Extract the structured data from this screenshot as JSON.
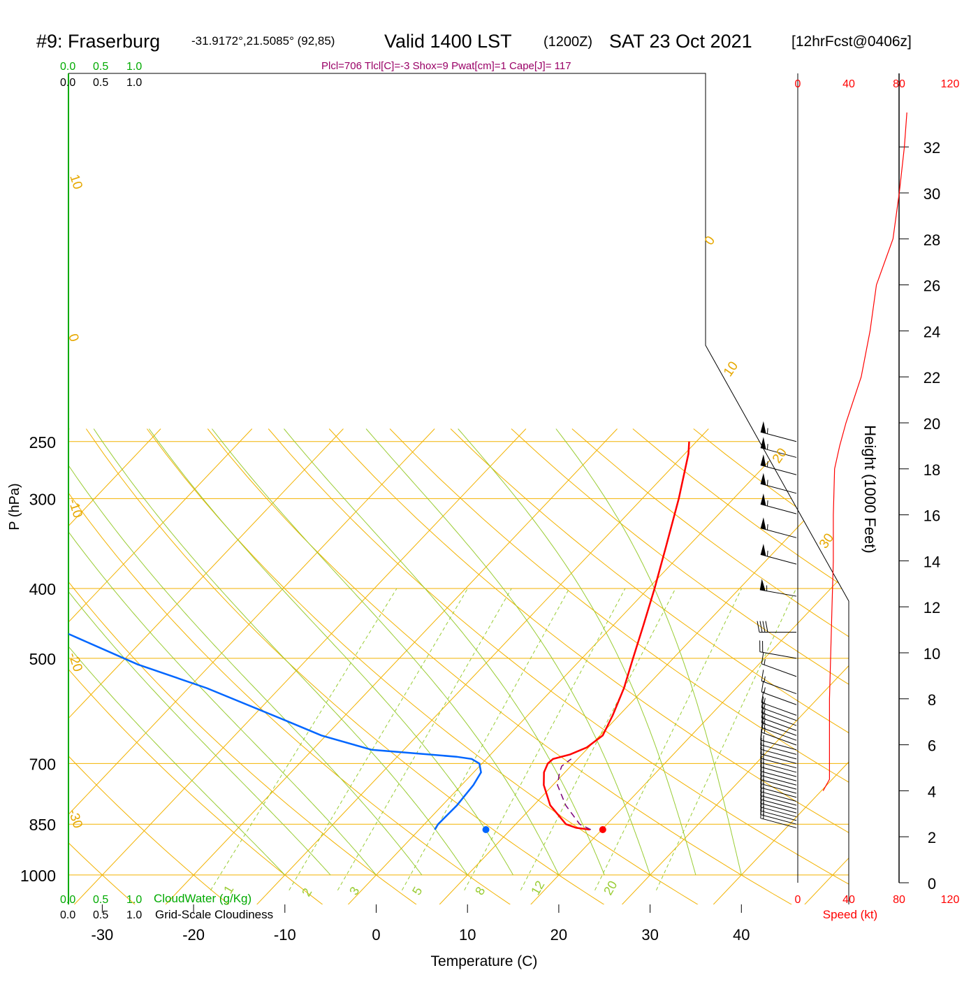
{
  "header": {
    "station": "#9: Fraserburg",
    "coords": "-31.9172°,21.5085° (92,85)",
    "valid": "Valid 1400 LST",
    "utc": "(1200Z)",
    "date": "SAT 23 Oct 2021",
    "forecast": "[12hrFcst@0406z]",
    "indices": "Plcl=706 Tlcl[C]=-3 Shox=9 Pwat[cm]=1 Cape[J]= 117"
  },
  "colors": {
    "temperature": "#ff0000",
    "dewpoint": "#0066ff",
    "parcel": "#7a0077",
    "isobar": "#f2b200",
    "dry_adiabat": "#f2b200",
    "moist_adiabat": "#99cc33",
    "mixing_ratio": "#99cc33",
    "cloudwater": "#00aa00",
    "speed": "#ff0000",
    "indices": "#990066"
  },
  "chart_data": {
    "type": "line",
    "xlabel": "Temperature (C)",
    "ylabel": "P (hPa)",
    "right_label": "Height (1000 Feet)",
    "x_ticks": [
      -30,
      -20,
      -10,
      0,
      10,
      20,
      30,
      40
    ],
    "p_ticks": [
      250,
      300,
      400,
      500,
      700,
      850,
      1000
    ],
    "height_ticks": [
      0,
      2,
      4,
      6,
      8,
      10,
      12,
      14,
      16,
      18,
      20,
      22,
      24,
      26,
      28,
      30,
      32
    ],
    "isotherm_labels": [
      "10",
      "0",
      "-10",
      "-20",
      "-30",
      "0",
      "10",
      "20",
      "30"
    ],
    "dry_adiabat_labels": [],
    "mixing_ratio_labels": [
      "1",
      "2",
      "3",
      "5",
      "8",
      "12",
      "20"
    ],
    "cloud_scale": {
      "cloudwater_ticks": [
        "0.0",
        "0.5",
        "1.0"
      ],
      "cloudiness_ticks": [
        "0.0",
        "0.5",
        "1.0"
      ],
      "cloudwater_label": "CloudWater (g/Kg)",
      "cloudiness_label": "Grid-Scale Cloudiness"
    },
    "speed_scale": {
      "ticks": [
        "0",
        "40",
        "80",
        "120"
      ],
      "label": "Speed (kt)"
    },
    "series": [
      {
        "name": "Temperature",
        "points": [
          [
            865,
            18.7
          ],
          [
            860,
            17.0
          ],
          [
            850,
            15.5
          ],
          [
            800,
            11.8
          ],
          [
            750,
            9.0
          ],
          [
            720,
            7.7
          ],
          [
            700,
            7.2
          ],
          [
            690,
            7.3
          ],
          [
            680,
            8.7
          ],
          [
            665,
            9.8
          ],
          [
            640,
            10.3
          ],
          [
            600,
            9.3
          ],
          [
            550,
            7.7
          ],
          [
            500,
            5.6
          ],
          [
            450,
            3.3
          ],
          [
            400,
            0.7
          ],
          [
            350,
            -2.4
          ],
          [
            300,
            -6.0
          ],
          [
            260,
            -9.6
          ],
          [
            250,
            -10.8
          ]
        ]
      },
      {
        "name": "Dewpoint",
        "points": [
          [
            865,
            1.7
          ],
          [
            850,
            1.5
          ],
          [
            800,
            1.6
          ],
          [
            750,
            1.3
          ],
          [
            720,
            0.8
          ],
          [
            700,
            -0.3
          ],
          [
            690,
            -1.6
          ],
          [
            685,
            -3.5
          ],
          [
            670,
            -13.5
          ],
          [
            640,
            -20.5
          ],
          [
            610,
            -26.0
          ],
          [
            550,
            -38.0
          ],
          [
            510,
            -48.0
          ],
          [
            470,
            -57.0
          ],
          [
            410,
            -72.0
          ],
          [
            380,
            -75.0
          ],
          [
            350,
            -80.0
          ],
          [
            320,
            -87.0
          ],
          [
            300,
            -90.0
          ],
          [
            270,
            -95.0
          ],
          [
            250,
            -98.0
          ]
        ]
      },
      {
        "name": "Parcel",
        "points": [
          [
            865,
            18.8
          ],
          [
            850,
            17.0
          ],
          [
            800,
            13.5
          ],
          [
            750,
            10.5
          ],
          [
            720,
            9.4
          ],
          [
            706,
            9.0
          ],
          [
            690,
            9.3
          ]
        ]
      }
    ],
    "surface_markers": {
      "temperature": [
        865,
        20.1
      ],
      "dewpoint": [
        865,
        7.3
      ]
    },
    "wind_barbs": [
      {
        "p": 860,
        "dir": 285,
        "spd": 15
      },
      {
        "p": 850,
        "dir": 285,
        "spd": 15
      },
      {
        "p": 840,
        "dir": 285,
        "spd": 15
      },
      {
        "p": 830,
        "dir": 285,
        "spd": 15
      },
      {
        "p": 820,
        "dir": 285,
        "spd": 15
      },
      {
        "p": 810,
        "dir": 285,
        "spd": 15
      },
      {
        "p": 800,
        "dir": 285,
        "spd": 15
      },
      {
        "p": 790,
        "dir": 285,
        "spd": 15
      },
      {
        "p": 780,
        "dir": 285,
        "spd": 15
      },
      {
        "p": 770,
        "dir": 285,
        "spd": 15
      },
      {
        "p": 760,
        "dir": 285,
        "spd": 15
      },
      {
        "p": 750,
        "dir": 285,
        "spd": 15
      },
      {
        "p": 740,
        "dir": 285,
        "spd": 15
      },
      {
        "p": 730,
        "dir": 285,
        "spd": 15
      },
      {
        "p": 720,
        "dir": 285,
        "spd": 15
      },
      {
        "p": 710,
        "dir": 285,
        "spd": 15
      },
      {
        "p": 700,
        "dir": 285,
        "spd": 15
      },
      {
        "p": 690,
        "dir": 285,
        "spd": 15
      },
      {
        "p": 680,
        "dir": 285,
        "spd": 15
      },
      {
        "p": 670,
        "dir": 285,
        "spd": 15
      },
      {
        "p": 660,
        "dir": 290,
        "spd": 15
      },
      {
        "p": 650,
        "dir": 290,
        "spd": 15
      },
      {
        "p": 640,
        "dir": 290,
        "spd": 15
      },
      {
        "p": 630,
        "dir": 290,
        "spd": 15
      },
      {
        "p": 620,
        "dir": 290,
        "spd": 15
      },
      {
        "p": 610,
        "dir": 290,
        "spd": 15
      },
      {
        "p": 600,
        "dir": 290,
        "spd": 15
      },
      {
        "p": 580,
        "dir": 290,
        "spd": 15
      },
      {
        "p": 560,
        "dir": 290,
        "spd": 15
      },
      {
        "p": 530,
        "dir": 290,
        "spd": 15
      },
      {
        "p": 500,
        "dir": 280,
        "spd": 20
      },
      {
        "p": 460,
        "dir": 270,
        "spd": 40
      },
      {
        "p": 410,
        "dir": 280,
        "spd": 55
      },
      {
        "p": 370,
        "dir": 285,
        "spd": 55
      },
      {
        "p": 340,
        "dir": 285,
        "spd": 55
      },
      {
        "p": 315,
        "dir": 285,
        "spd": 55
      },
      {
        "p": 295,
        "dir": 285,
        "spd": 55
      },
      {
        "p": 278,
        "dir": 285,
        "spd": 55
      },
      {
        "p": 263,
        "dir": 285,
        "spd": 55
      },
      {
        "p": 250,
        "dir": 285,
        "spd": 55
      }
    ],
    "speed_profile": {
      "height_kft": [
        4.0,
        4.5,
        6,
        8,
        10,
        12,
        14,
        16,
        18,
        19,
        20,
        22,
        24,
        26,
        28,
        30,
        32,
        33.5
      ],
      "speed_kt": [
        20,
        25,
        25,
        25,
        26,
        27,
        28,
        28,
        29,
        33,
        38,
        50,
        57,
        62,
        75,
        80,
        84,
        86
      ]
    }
  }
}
